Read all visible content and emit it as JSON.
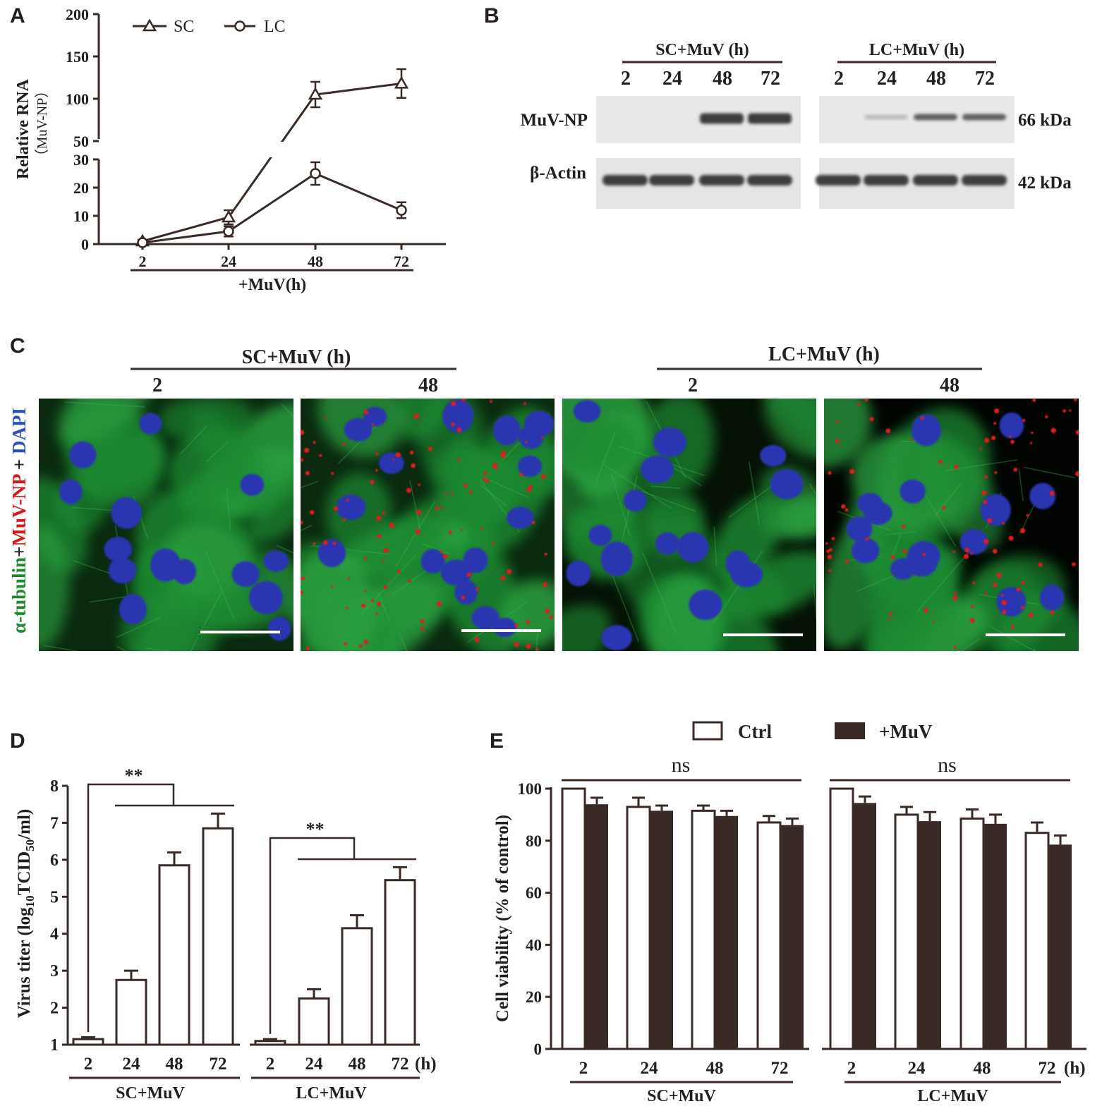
{
  "colors": {
    "dark": "#3a2a26",
    "bar_filled": "#3a2a26",
    "bar_open": "#ffffff",
    "blot_bg": "#e8e8e8",
    "band": "#3d3d3d",
    "micro_bg": "#060a06",
    "cell_green": "#1e8a32",
    "nucleus_blue": "#2a35b0",
    "np_red": "#e11a1a",
    "scalebar": "#ffffff"
  },
  "panel_labels": {
    "a": "A",
    "b": "B",
    "c": "C",
    "d": "D",
    "e": "E"
  },
  "chart_data": [
    {
      "panel": "A",
      "type": "line",
      "ylabel": "Relative RNA",
      "ylabel_sub": "（MuV-NP）",
      "xlabel": "+MuV(h)",
      "x": [
        "2",
        "24",
        "48",
        "72"
      ],
      "broken_axis": true,
      "ylim_lower": [
        0,
        30
      ],
      "ylim_upper": [
        50,
        200
      ],
      "yticks_lower": [
        "0",
        "10",
        "20",
        "30"
      ],
      "yticks_upper": [
        "50",
        "100",
        "150",
        "200"
      ],
      "legend_position": "top",
      "series": [
        {
          "name": "SC",
          "marker": "triangle",
          "values": [
            1,
            9.5,
            105,
            118
          ],
          "errors": [
            0.5,
            2.5,
            15,
            17
          ]
        },
        {
          "name": "LC",
          "marker": "circle",
          "values": [
            0.5,
            4.5,
            25,
            12
          ],
          "errors": [
            0.3,
            1.8,
            4,
            2.8
          ]
        }
      ]
    },
    {
      "panel": "D",
      "type": "bar",
      "ylabel_prefix": "Virus titer (log",
      "ylabel_sub": "10",
      "ylabel_mid": "TCID",
      "ylabel_sub2": "50",
      "ylabel_suffix": "/ml)",
      "ylim": [
        1,
        8
      ],
      "yticks": [
        "1",
        "2",
        "3",
        "4",
        "5",
        "6",
        "7",
        "8"
      ],
      "unit_label": "(h)",
      "significance": [
        "**",
        "**"
      ],
      "groups": [
        {
          "name": "SC+MuV",
          "categories": [
            "2",
            "24",
            "48",
            "72"
          ],
          "values": [
            1.15,
            2.75,
            5.85,
            6.85
          ],
          "errors": [
            0.05,
            0.25,
            0.35,
            0.4
          ]
        },
        {
          "name": "LC+MuV",
          "categories": [
            "2",
            "24",
            "48",
            "72"
          ],
          "values": [
            1.1,
            2.25,
            4.15,
            5.45
          ],
          "errors": [
            0.05,
            0.25,
            0.35,
            0.35
          ]
        }
      ]
    },
    {
      "panel": "E",
      "type": "bar",
      "ylabel": "Cell viability (% of control)",
      "ylim": [
        0,
        100
      ],
      "yticks": [
        "0",
        "20",
        "40",
        "60",
        "80",
        "100"
      ],
      "unit_label": "(h)",
      "legend_position": "top",
      "significance": [
        "ns",
        "ns"
      ],
      "series_names": [
        "Ctrl",
        "+MuV"
      ],
      "groups": [
        {
          "name": "SC+MuV",
          "categories": [
            "2",
            "24",
            "48",
            "72"
          ],
          "ctrl": [
            100,
            93,
            91.5,
            87
          ],
          "ctrl_err": [
            0,
            3.5,
            2,
            2.5
          ],
          "muv": [
            94,
            91.5,
            89.5,
            86
          ],
          "muv_err": [
            2.5,
            2,
            2,
            2.5
          ]
        },
        {
          "name": "LC+MuV",
          "categories": [
            "2",
            "24",
            "48",
            "72"
          ],
          "ctrl": [
            100,
            90,
            88.5,
            83
          ],
          "ctrl_err": [
            0,
            3,
            3.5,
            4
          ],
          "muv": [
            94.5,
            87.5,
            86.5,
            78.5
          ],
          "muv_err": [
            2.5,
            3.5,
            3.5,
            3.5
          ]
        }
      ]
    }
  ],
  "western_blot": {
    "groups": [
      {
        "title": "SC+MuV (h)",
        "lanes": [
          "2",
          "24",
          "48",
          "72"
        ],
        "np_intensity": [
          0,
          0,
          1,
          1
        ]
      },
      {
        "title": "LC+MuV (h)",
        "lanes": [
          "2",
          "24",
          "48",
          "72"
        ],
        "np_intensity": [
          0,
          0.08,
          0.6,
          0.6
        ]
      }
    ],
    "rows": [
      {
        "label": "MuV-NP",
        "size": "66 kDa"
      },
      {
        "label": "β-Actin",
        "size": "42 kDa"
      }
    ]
  },
  "microscopy": {
    "stain_label_parts": [
      {
        "text": "α-tubulin",
        "color": "#1e8a32"
      },
      {
        "text": "+",
        "color": "#231f20"
      },
      {
        "text": "MuV-NP",
        "color": "#d21a1a"
      },
      {
        "text": " + ",
        "color": "#231f20"
      },
      {
        "text": "DAPI",
        "color": "#2a50c0"
      }
    ],
    "groups": [
      {
        "title": "SC+MuV (h)",
        "times": [
          "2",
          "48"
        ]
      },
      {
        "title": "LC+MuV (h)",
        "times": [
          "2",
          "48"
        ]
      }
    ],
    "red_puncta_density": [
      0,
      1,
      0,
      0.8
    ]
  }
}
